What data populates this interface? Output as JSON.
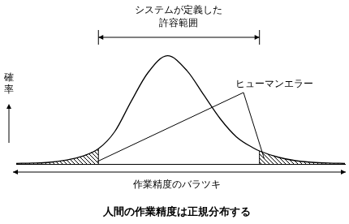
{
  "chart_data": {
    "type": "line",
    "title": "人間の作業精度は正規分布する",
    "x_label": "作業精度のバラツキ",
    "y_label": "確率",
    "x": [
      0,
      5,
      10,
      15,
      20,
      25,
      30,
      35,
      40,
      46,
      52,
      57,
      62,
      67,
      72,
      74,
      80,
      85,
      90,
      95,
      100
    ],
    "values": [
      0.5,
      0.8,
      1.5,
      3.5,
      7,
      14,
      30,
      58,
      84,
      100,
      86,
      64,
      42,
      25,
      15,
      12,
      6,
      3,
      1.5,
      0.8,
      0.5
    ],
    "color": "#000000",
    "xlim": [
      0,
      100
    ],
    "ylim": [
      0,
      105
    ],
    "grid": false,
    "tick_labels": false,
    "tolerance_range": {
      "label": [
        "システムが定義した",
        "許容範囲"
      ],
      "x": [
        25,
        74
      ]
    },
    "error_label": "ヒューマンエラー"
  }
}
